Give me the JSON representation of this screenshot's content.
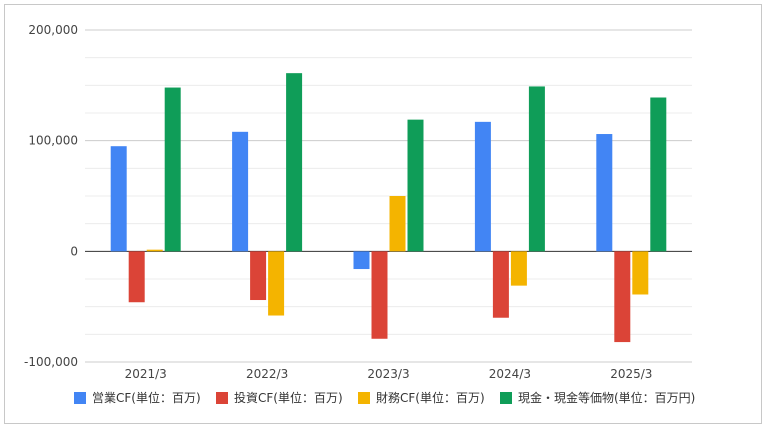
{
  "chart_data": {
    "type": "bar",
    "categories": [
      "2021/3",
      "2022/3",
      "2023/3",
      "2024/3",
      "2025/3"
    ],
    "series": [
      {
        "name": "営業CF(単位：百万)",
        "color": "#4285F4",
        "values": [
          95000,
          108000,
          -16000,
          117000,
          106000
        ]
      },
      {
        "name": "投資CF(単位：百万)",
        "color": "#DB4437",
        "values": [
          -46000,
          -44000,
          -79000,
          -60000,
          -82000
        ]
      },
      {
        "name": "財務CF(単位：百万)",
        "color": "#F4B400",
        "values": [
          1500,
          -58000,
          50000,
          -31000,
          -39000
        ]
      },
      {
        "name": "現金・現金等価物(単位：百万円)",
        "color": "#0F9D58",
        "values": [
          148000,
          161000,
          119000,
          149000,
          139000
        ]
      }
    ],
    "yticks": [
      "200,000",
      "100,000",
      "0",
      "-100,000"
    ],
    "ylim": [
      -100000,
      200000
    ],
    "grid": true,
    "legend_position": "bottom",
    "title": "",
    "xlabel": "",
    "ylabel": ""
  }
}
